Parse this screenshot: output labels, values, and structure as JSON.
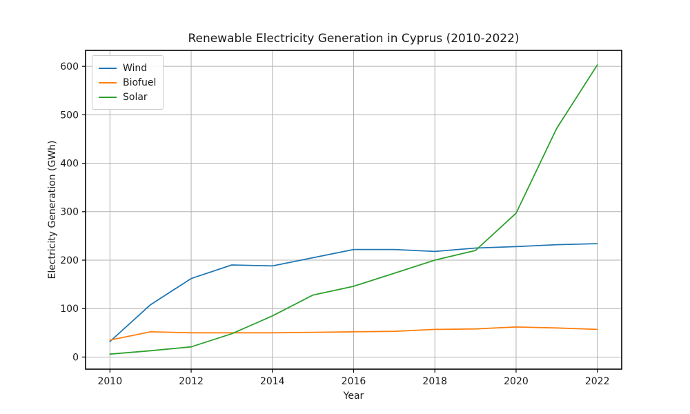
{
  "chart_data": {
    "type": "line",
    "title": "Renewable Electricity Generation in Cyprus (2010-2022)",
    "xlabel": "Year",
    "ylabel": "Electricity Generation (GWh)",
    "x": [
      2010,
      2011,
      2012,
      2013,
      2014,
      2015,
      2016,
      2017,
      2018,
      2019,
      2020,
      2021,
      2022
    ],
    "series": [
      {
        "name": "Wind",
        "color": "#1f77b4",
        "values": [
          32,
          108,
          162,
          190,
          188,
          205,
          222,
          222,
          218,
          225,
          228,
          232,
          234
        ]
      },
      {
        "name": "Biofuel",
        "color": "#ff7f0e",
        "values": [
          35,
          52,
          50,
          50,
          50,
          51,
          52,
          53,
          57,
          58,
          62,
          60,
          57
        ]
      },
      {
        "name": "Solar",
        "color": "#2ca02c",
        "values": [
          6,
          13,
          21,
          48,
          85,
          128,
          146,
          173,
          200,
          220,
          297,
          472,
          603
        ]
      }
    ],
    "x_ticks": [
      2010,
      2012,
      2014,
      2016,
      2018,
      2020,
      2022
    ],
    "y_ticks": [
      0,
      100,
      200,
      300,
      400,
      500,
      600
    ],
    "xlim": [
      2009.4,
      2022.6
    ],
    "ylim": [
      -25,
      633
    ],
    "grid": true,
    "grid_color": "#b0b0b0",
    "axis_color": "#000000",
    "legend_position": "upper left",
    "background": "#ffffff"
  }
}
